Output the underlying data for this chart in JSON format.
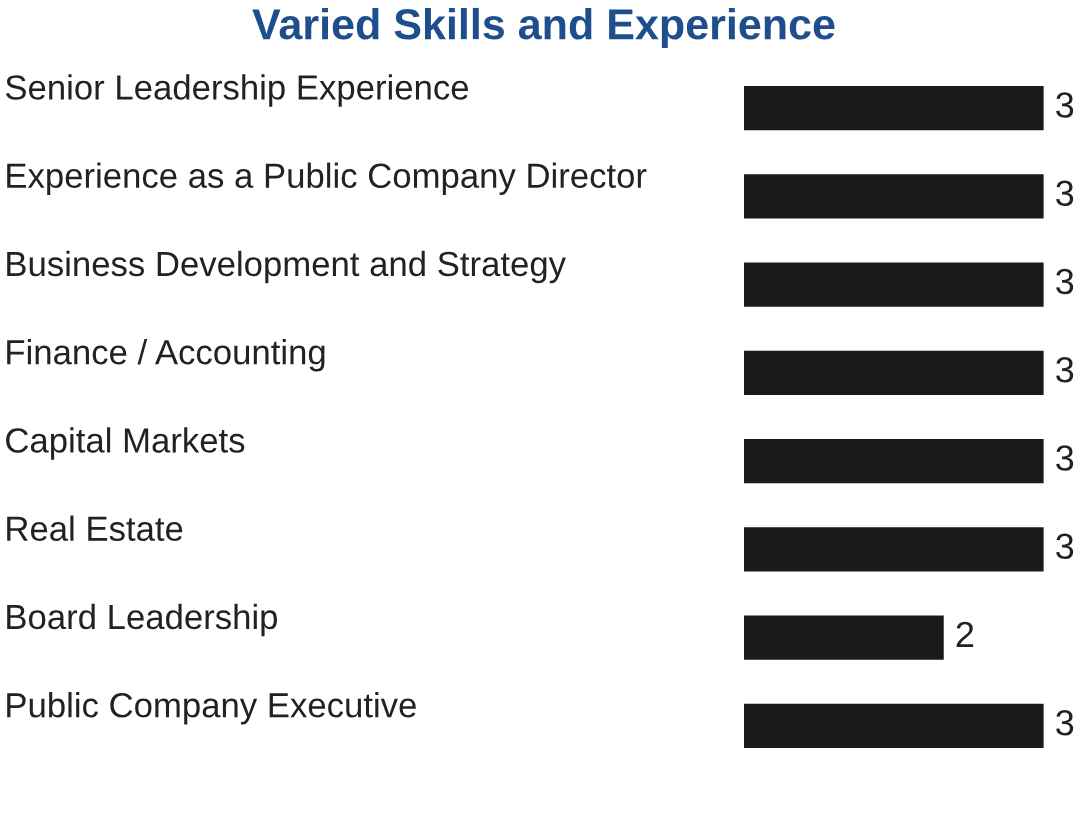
{
  "chart_data": {
    "type": "bar",
    "orientation": "horizontal",
    "title": "Varied Skills and Experience",
    "categories": [
      "Senior Leadership Experience",
      "Experience as a Public Company Director",
      "Business Development and Strategy",
      "Finance / Accounting",
      "Capital Markets",
      "Real Estate",
      "Board Leadership",
      "Public Company Executive"
    ],
    "values": [
      3,
      3,
      3,
      3,
      3,
      3,
      2,
      3
    ],
    "color": "#1a1a1a",
    "data_labels": true
  }
}
